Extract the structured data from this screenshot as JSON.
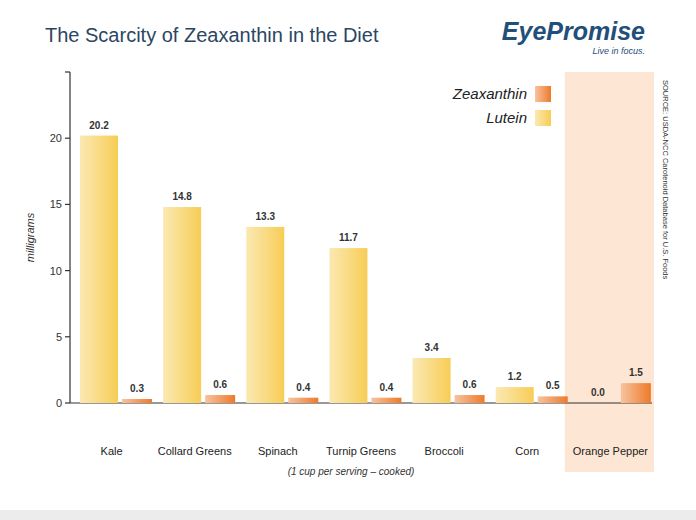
{
  "chart_data": {
    "type": "bar",
    "title": "The Scarcity of Zeaxanthin in the Diet",
    "logo": "EyePromise",
    "logo_tagline": "Live in focus.",
    "source": "SOURCE: USDA-NCC Carotenoid Database for U.S. Foods",
    "y_label": "milligrams",
    "x_label": "(1 cup per serving – cooked)",
    "categories": [
      "Kale",
      "Collard Greens",
      "Spinach",
      "Turnip Greens",
      "Broccoli",
      "Corn",
      "Orange Pepper"
    ],
    "series": [
      {
        "name": "Lutein",
        "color": "#f7cd55",
        "values": [
          20.2,
          14.8,
          13.3,
          11.7,
          3.4,
          1.2,
          0.0
        ],
        "value_labels": [
          "20.2",
          "14.8",
          "13.3",
          "11.7",
          "3.4",
          "1.2",
          "0.0"
        ]
      },
      {
        "name": "Zeaxanthin",
        "color": "#ee7a2a",
        "values": [
          0.3,
          0.6,
          0.4,
          0.4,
          0.6,
          0.5,
          1.5
        ],
        "value_labels": [
          "0.3",
          "0.6",
          "0.4",
          "0.4",
          "0.6",
          "0.5",
          "1.5"
        ]
      }
    ],
    "ylim": [
      0,
      25
    ],
    "yticks": [
      0,
      5,
      10,
      15,
      20
    ],
    "grid": false,
    "legend": "top-right",
    "data_labels": true
  }
}
